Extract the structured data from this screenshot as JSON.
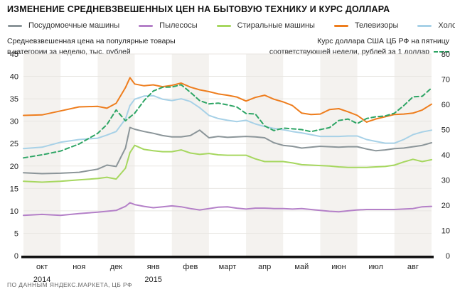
{
  "title": "ИЗМЕНЕНИЕ СРЕДНЕВЗВЕШЕННЫХ ЦЕН НА БЫТОВУЮ ТЕХНИКУ И КУРС ДОЛЛАРА",
  "captions": {
    "left_line1": "Средневзвешенная цена на популярные товары",
    "left_line2": "в категории за неделю, тыс. рублей",
    "right_line1": "Курс доллара США ЦБ РФ на пятницу",
    "right_line2": "соответствующей недели, рублей за 1 доллар"
  },
  "footer": "ПО ДАННЫМ ЯНДЕКС.МАРКЕТА, ЦБ РФ",
  "colors": {
    "stripe": "#f4f2ef",
    "gridline": "#e8e6e2",
    "baseline": "#111111",
    "tick_text": "#222222",
    "dollar_dash": "#2ea565"
  },
  "chart_data": {
    "type": "line",
    "x_note": "x is position in months from 1 Oct 2014 (0 = start of окт, 11 = end of авг); data sampled weekly/biweekly",
    "x_months": [
      "окт",
      "ноя",
      "дек",
      "янв",
      "фев",
      "март",
      "апр",
      "май",
      "июн",
      "июл",
      "авг"
    ],
    "striped_month_indices": [
      0,
      2,
      4,
      6,
      8,
      10
    ],
    "years": [
      {
        "label": "2014",
        "under_month_index": 0
      },
      {
        "label": "2015",
        "under_month_index": 3
      }
    ],
    "left_axis": {
      "title": "тыс. рублей",
      "ticks": [
        45,
        40,
        35,
        30,
        25,
        20,
        15,
        10,
        5,
        0
      ],
      "range": [
        0,
        45
      ]
    },
    "right_axis": {
      "title": "рублей за 1 доллар",
      "ticks": [
        80,
        70,
        60,
        50,
        40,
        30,
        20,
        10,
        0
      ],
      "range": [
        0,
        80
      ]
    },
    "x": [
      0,
      0.5,
      1,
      1.5,
      2,
      2.25,
      2.5,
      2.75,
      2.87,
      3,
      3.25,
      3.5,
      3.75,
      4,
      4.25,
      4.5,
      4.75,
      5,
      5.25,
      5.5,
      5.75,
      6,
      6.25,
      6.5,
      6.75,
      7,
      7.25,
      7.5,
      7.75,
      8,
      8.25,
      8.5,
      8.75,
      9,
      9.25,
      9.5,
      9.75,
      10,
      10.25,
      10.5,
      10.75,
      11
    ],
    "series": [
      {
        "name": "Посудомоечные машины",
        "axis": "left",
        "color": "#8b9599",
        "dashed": false,
        "values": [
          18.5,
          18.3,
          18.4,
          18.6,
          19.3,
          20.2,
          19.9,
          24.0,
          28.6,
          28.2,
          27.7,
          27.3,
          26.8,
          26.5,
          26.5,
          26.8,
          28.0,
          26.3,
          26.6,
          26.4,
          26.5,
          26.6,
          26.5,
          26.3,
          25.2,
          24.6,
          24.4,
          24.0,
          24.2,
          24.4,
          24.3,
          24.2,
          24.3,
          24.3,
          23.8,
          23.4,
          23.6,
          23.9,
          24.0,
          24.3,
          24.6,
          25.2
        ]
      },
      {
        "name": "Пылесосы",
        "axis": "left",
        "color": "#b480c8",
        "dashed": false,
        "values": [
          9.0,
          9.2,
          9.0,
          9.4,
          9.7,
          9.9,
          10.1,
          11.0,
          11.8,
          11.4,
          11.0,
          10.7,
          10.9,
          11.1,
          10.9,
          10.5,
          10.2,
          10.5,
          10.8,
          10.9,
          10.6,
          10.4,
          10.6,
          10.6,
          10.5,
          10.5,
          10.4,
          10.5,
          10.3,
          10.1,
          9.9,
          9.8,
          10.0,
          10.2,
          10.3,
          10.3,
          10.3,
          10.3,
          10.4,
          10.5,
          10.9,
          11.0
        ]
      },
      {
        "name": "Стиральные машины",
        "axis": "left",
        "color": "#a6d75f",
        "dashed": false,
        "values": [
          16.6,
          16.4,
          16.6,
          16.9,
          17.2,
          17.5,
          17.1,
          19.5,
          23.0,
          24.6,
          23.7,
          23.4,
          23.2,
          23.2,
          23.6,
          22.9,
          22.6,
          22.8,
          22.5,
          22.4,
          22.4,
          22.4,
          21.6,
          21.0,
          21.0,
          21.0,
          20.7,
          20.3,
          20.2,
          20.1,
          20.0,
          19.8,
          19.7,
          19.7,
          19.7,
          19.8,
          19.9,
          20.2,
          20.9,
          21.5,
          21.0,
          21.4
        ]
      },
      {
        "name": "Телевизоры",
        "axis": "left",
        "color": "#ee7d1d",
        "dashed": false,
        "values": [
          31.3,
          31.4,
          32.3,
          33.2,
          33.3,
          32.9,
          34.0,
          37.5,
          39.7,
          38.3,
          37.9,
          38.1,
          37.7,
          38.0,
          38.5,
          37.6,
          37.0,
          36.6,
          36.1,
          35.8,
          35.4,
          34.5,
          35.3,
          35.8,
          34.9,
          34.3,
          33.5,
          31.8,
          31.5,
          31.6,
          32.6,
          32.8,
          32.1,
          31.3,
          29.8,
          30.5,
          31.0,
          31.5,
          31.6,
          31.8,
          32.5,
          33.8
        ]
      },
      {
        "name": "Холодильники",
        "axis": "left",
        "color": "#a7d1e7",
        "dashed": false,
        "values": [
          23.9,
          24.2,
          25.3,
          25.9,
          26.2,
          26.9,
          27.7,
          30.5,
          33.5,
          34.9,
          35.6,
          35.7,
          34.9,
          34.6,
          35.0,
          34.4,
          33.0,
          31.3,
          30.6,
          30.2,
          29.9,
          30.2,
          29.4,
          28.8,
          28.4,
          28.1,
          27.7,
          27.4,
          27.0,
          26.6,
          26.6,
          26.6,
          26.7,
          26.7,
          25.9,
          25.5,
          25.1,
          25.1,
          25.9,
          27.0,
          27.6,
          28.0
        ]
      },
      {
        "name": "Курс доллара США ЦБ РФ",
        "axis": "right",
        "color": "#2ea565",
        "dashed": true,
        "values": [
          38.8,
          40.0,
          41.5,
          44.3,
          48.5,
          52.0,
          57.8,
          53.5,
          55.0,
          56.5,
          61.5,
          65.3,
          66.8,
          66.9,
          67.8,
          64.8,
          61.5,
          60.2,
          60.5,
          59.8,
          59.0,
          56.4,
          56.2,
          51.5,
          49.6,
          50.6,
          50.3,
          50.0,
          49.2,
          50.0,
          50.8,
          53.6,
          54.2,
          52.4,
          54.4,
          55.1,
          55.4,
          56.5,
          59.5,
          63.0,
          63.2,
          66.5
        ]
      }
    ]
  }
}
